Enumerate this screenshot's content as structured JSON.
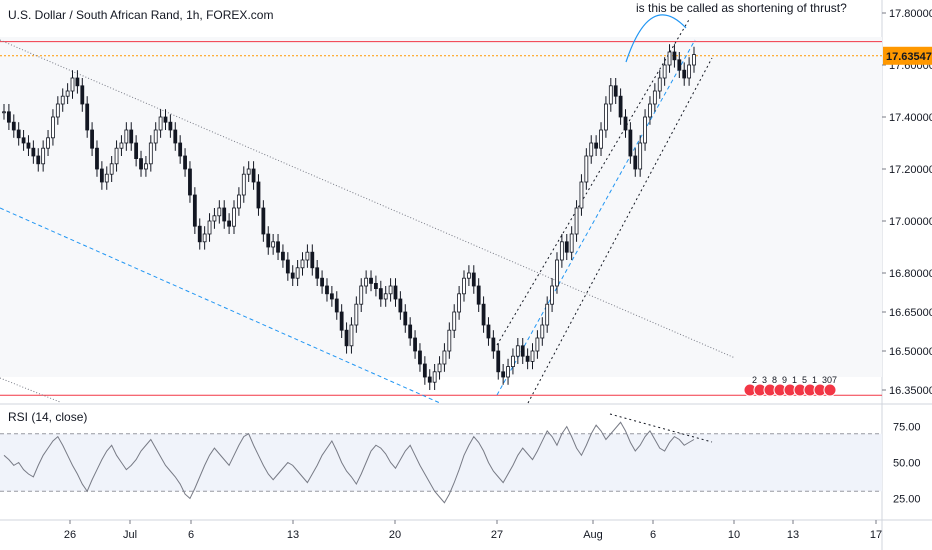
{
  "header": {
    "title": "U.S. Dollar / South African Rand, 1h, FOREX.com"
  },
  "annotation": "is this be called as shortening of thrust?",
  "chart_data": [
    {
      "type": "candlestick",
      "title": "U.S. Dollar / South African Rand, 1h, FOREX.com",
      "ylim": [
        16.3,
        17.85
      ],
      "price_ticks": [
        "17.80000",
        "17.60000",
        "17.40000",
        "17.20000",
        "17.00000",
        "16.80000",
        "16.65000",
        "16.50000",
        "16.35000"
      ],
      "current_price": "17.63547",
      "x_ticks": [
        "26",
        "Jul",
        "6",
        "13",
        "20",
        "27",
        "Aug",
        "6",
        "10",
        "13",
        "17"
      ],
      "series": [
        {
          "name": "close",
          "values": [
            17.42,
            17.38,
            17.35,
            17.32,
            17.3,
            17.28,
            17.25,
            17.22,
            17.28,
            17.32,
            17.4,
            17.45,
            17.48,
            17.5,
            17.55,
            17.52,
            17.45,
            17.35,
            17.28,
            17.2,
            17.15,
            17.18,
            17.22,
            17.28,
            17.3,
            17.35,
            17.3,
            17.24,
            17.2,
            17.22,
            17.3,
            17.35,
            17.4,
            17.38,
            17.35,
            17.3,
            17.25,
            17.2,
            17.1,
            16.98,
            16.92,
            16.95,
            17.0,
            17.02,
            17.05,
            17.0,
            16.98,
            17.05,
            17.1,
            17.18,
            17.2,
            17.15,
            17.05,
            16.95,
            16.9,
            16.92,
            16.88,
            16.85,
            16.8,
            16.78,
            16.82,
            16.85,
            16.88,
            16.82,
            16.78,
            16.75,
            16.72,
            16.7,
            16.65,
            16.58,
            16.52,
            16.6,
            16.68,
            16.75,
            16.78,
            16.76,
            16.74,
            16.7,
            16.72,
            16.75,
            16.7,
            16.65,
            16.6,
            16.55,
            16.5,
            16.45,
            16.4,
            16.38,
            16.42,
            16.45,
            16.5,
            16.58,
            16.65,
            16.72,
            16.78,
            16.8,
            16.75,
            16.68,
            16.6,
            16.55,
            16.5,
            16.42,
            16.4,
            16.44,
            16.48,
            16.52,
            16.48,
            16.46,
            16.5,
            16.55,
            16.6,
            16.68,
            16.75,
            16.85,
            16.92,
            16.88,
            16.95,
            17.05,
            17.15,
            17.25,
            17.3,
            17.28,
            17.35,
            17.45,
            17.52,
            17.48,
            17.4,
            17.35,
            17.25,
            17.2,
            17.3,
            17.4,
            17.45,
            17.5,
            17.55,
            17.6,
            17.65,
            17.62,
            17.58,
            17.55,
            17.6,
            17.64
          ]
        }
      ],
      "lines": [
        {
          "name": "upper-red-line",
          "y": 17.69,
          "color": "#f23645"
        },
        {
          "name": "lower-red-line",
          "y": 16.33,
          "color": "#f23645"
        },
        {
          "name": "price-line",
          "y": 17.63547,
          "color": "#ff9800"
        }
      ],
      "events": [
        "2",
        "3",
        "8",
        "9",
        "1",
        "5",
        "1",
        "30",
        "7"
      ]
    },
    {
      "type": "line",
      "title": "RSI (14, close)",
      "ylim": [
        10,
        90
      ],
      "y_ticks": [
        "75.00",
        "50.00",
        "25.00"
      ],
      "bands": [
        30,
        70
      ],
      "series": [
        {
          "name": "RSI",
          "values": [
            55,
            52,
            48,
            50,
            45,
            42,
            40,
            48,
            55,
            60,
            65,
            68,
            62,
            55,
            48,
            42,
            35,
            30,
            38,
            45,
            52,
            58,
            62,
            55,
            50,
            45,
            48,
            52,
            58,
            62,
            66,
            60,
            54,
            48,
            44,
            40,
            35,
            28,
            25,
            32,
            40,
            48,
            55,
            60,
            56,
            52,
            48,
            55,
            62,
            68,
            70,
            62,
            55,
            48,
            42,
            38,
            42,
            46,
            50,
            48,
            44,
            40,
            36,
            42,
            48,
            55,
            60,
            65,
            58,
            50,
            44,
            40,
            35,
            42,
            50,
            58,
            62,
            60,
            56,
            50,
            46,
            52,
            58,
            62,
            55,
            48,
            42,
            36,
            30,
            26,
            22,
            28,
            36,
            45,
            55,
            62,
            68,
            64,
            58,
            50,
            44,
            40,
            36,
            42,
            48,
            55,
            60,
            56,
            52,
            58,
            65,
            72,
            68,
            62,
            70,
            75,
            68,
            60,
            55,
            62,
            70,
            76,
            72,
            66,
            70,
            74,
            78,
            72,
            64,
            58,
            62,
            68,
            72,
            66,
            60,
            58,
            64,
            68,
            66,
            62,
            64,
            66
          ]
        }
      ]
    }
  ],
  "colors": {
    "candle": "#131722",
    "red_line": "#f23645",
    "orange": "#ff9800",
    "blue": "#2196f3",
    "grid": "#e0e3eb"
  }
}
